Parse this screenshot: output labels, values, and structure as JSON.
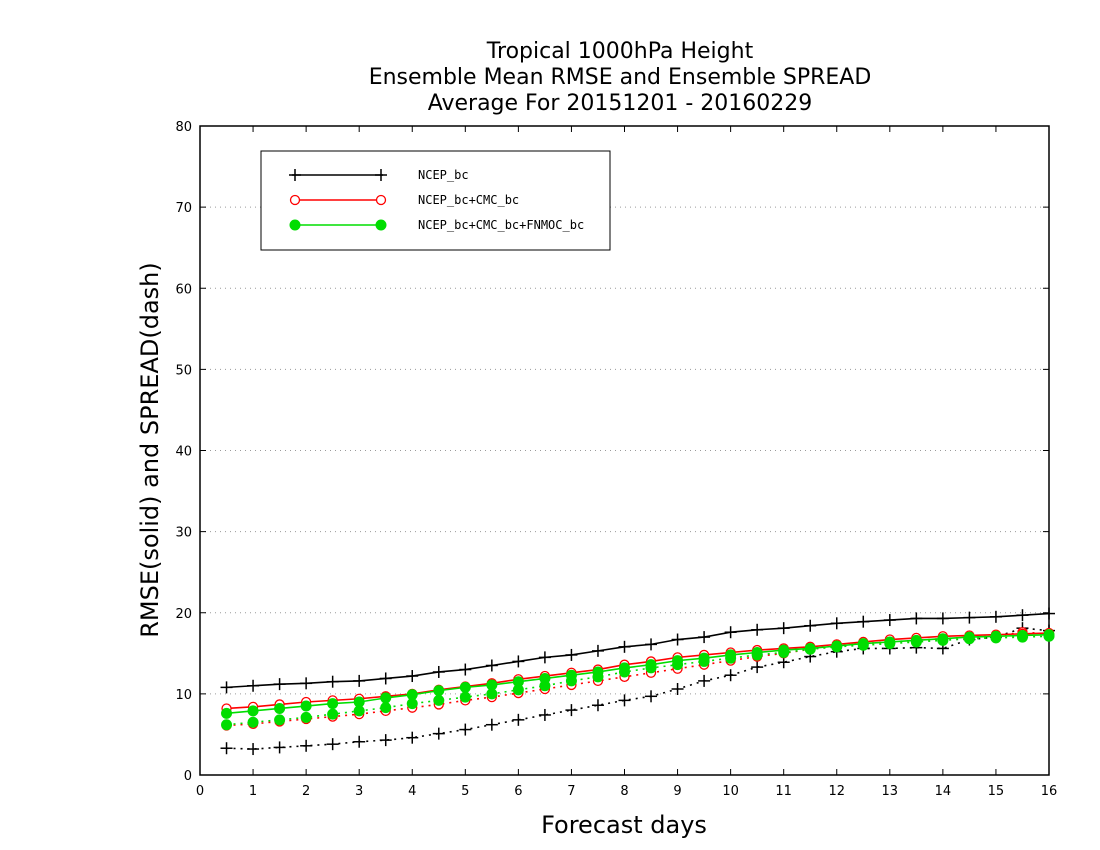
{
  "chart_data": {
    "type": "line",
    "title": [
      "Tropical 1000hPa Height",
      "Ensemble Mean RMSE and Ensemble SPREAD",
      "Average For 20151201 - 20160229"
    ],
    "xlabel": "Forecast days",
    "ylabel": "RMSE(solid) and SPREAD(dash)",
    "xlim": [
      0,
      16
    ],
    "ylim": [
      0,
      80
    ],
    "x_ticks": [
      0,
      1,
      2,
      3,
      4,
      5,
      6,
      7,
      8,
      9,
      10,
      11,
      12,
      13,
      14,
      15,
      16
    ],
    "y_ticks": [
      0,
      10,
      20,
      30,
      40,
      50,
      60,
      70,
      80
    ],
    "grid": "horizontal dotted",
    "legend_position": "top-left",
    "x": [
      0.5,
      1,
      1.5,
      2,
      2.5,
      3,
      3.5,
      4,
      4.5,
      5,
      5.5,
      6,
      6.5,
      7,
      7.5,
      8,
      8.5,
      9,
      9.5,
      10,
      10.5,
      11,
      11.5,
      12,
      12.5,
      13,
      13.5,
      14,
      14.5,
      15,
      15.5,
      16
    ],
    "series": [
      {
        "name": "NCEP_bc",
        "color": "#000000",
        "marker": "plus",
        "rmse": [
          10.8,
          11.0,
          11.2,
          11.3,
          11.5,
          11.6,
          11.9,
          12.2,
          12.7,
          13.0,
          13.5,
          14.0,
          14.5,
          14.8,
          15.3,
          15.8,
          16.1,
          16.7,
          17.0,
          17.6,
          17.9,
          18.1,
          18.4,
          18.7,
          18.9,
          19.1,
          19.3,
          19.3,
          19.4,
          19.5,
          19.7,
          19.9
        ],
        "spread": [
          3.3,
          3.2,
          3.4,
          3.6,
          3.8,
          4.1,
          4.3,
          4.6,
          5.1,
          5.6,
          6.2,
          6.8,
          7.4,
          8.0,
          8.6,
          9.2,
          9.7,
          10.6,
          11.6,
          12.3,
          13.3,
          13.9,
          14.6,
          15.2,
          15.6,
          15.6,
          15.7,
          15.6,
          16.7,
          17.0,
          18.1,
          17.8
        ]
      },
      {
        "name": "NCEP_bc+CMC_bc",
        "color": "#ff0000",
        "marker": "open-circle",
        "rmse": [
          8.2,
          8.4,
          8.7,
          9.0,
          9.2,
          9.4,
          9.7,
          10.0,
          10.5,
          10.9,
          11.3,
          11.8,
          12.2,
          12.6,
          13.0,
          13.6,
          14.0,
          14.5,
          14.8,
          15.1,
          15.4,
          15.6,
          15.8,
          16.1,
          16.4,
          16.7,
          16.9,
          17.1,
          17.2,
          17.3,
          17.4,
          17.5
        ],
        "spread": [
          6.1,
          6.3,
          6.6,
          6.9,
          7.2,
          7.5,
          7.9,
          8.3,
          8.7,
          9.2,
          9.6,
          10.1,
          10.6,
          11.1,
          11.6,
          12.1,
          12.6,
          13.1,
          13.6,
          14.1,
          14.6,
          15.0,
          15.5,
          15.9,
          16.2,
          16.4,
          16.6,
          16.8,
          17.0,
          17.1,
          17.6,
          17.4
        ]
      },
      {
        "name": "NCEP_bc+CMC_bc+FNMOC_bc",
        "color": "#00dd00",
        "marker": "filled-circle",
        "rmse": [
          7.6,
          7.9,
          8.2,
          8.5,
          8.8,
          9.0,
          9.5,
          9.9,
          10.4,
          10.8,
          11.1,
          11.5,
          11.9,
          12.3,
          12.7,
          13.2,
          13.6,
          14.1,
          14.4,
          14.8,
          15.1,
          15.4,
          15.6,
          15.9,
          16.2,
          16.4,
          16.6,
          16.8,
          17.0,
          17.1,
          17.2,
          17.3
        ],
        "spread": [
          6.2,
          6.5,
          6.8,
          7.1,
          7.5,
          7.9,
          8.3,
          8.8,
          9.2,
          9.6,
          10.0,
          10.5,
          11.0,
          11.6,
          12.1,
          12.7,
          13.2,
          13.6,
          14.0,
          14.4,
          14.8,
          15.1,
          15.5,
          15.8,
          16.0,
          16.2,
          16.4,
          16.6,
          16.8,
          16.9,
          17.0,
          17.1
        ]
      }
    ]
  }
}
